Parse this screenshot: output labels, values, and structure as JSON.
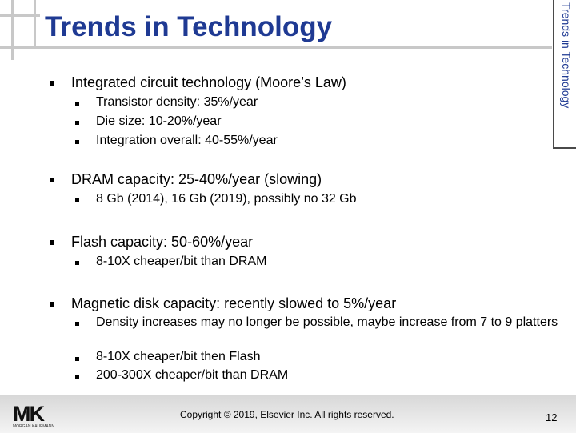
{
  "slide": {
    "title": "Trends in Technology",
    "side_label": "Trends in Technology",
    "bullets": [
      {
        "text": "Integrated circuit technology (Moore’s Law)",
        "sub": [
          "Transistor density: 35%/year",
          "Die size: 10-20%/year",
          "Integration overall: 40-55%/year"
        ]
      },
      {
        "text": "DRAM capacity: 25-40%/year (slowing)",
        "sub": [
          "8 Gb (2014), 16 Gb (2019), possibly no 32 Gb"
        ]
      },
      {
        "text": "Flash capacity: 50-60%/year",
        "sub": [
          "8-10X cheaper/bit than DRAM"
        ]
      },
      {
        "text": "Magnetic disk capacity: recently slowed to 5%/year",
        "sub": [
          "Density increases may no longer be possible, maybe increase from 7 to 9 platters",
          "8-10X cheaper/bit then Flash",
          "200-300X cheaper/bit than DRAM"
        ]
      }
    ],
    "footer": {
      "copyright": "Copyright © 2019, Elsevier Inc. All rights reserved.",
      "page_number": "12",
      "logo_text": "MK",
      "logo_subtext": "MORGAN KAUFMANN"
    },
    "colors": {
      "title": "#1f3a93",
      "footer_bg": "#d8d8d8"
    }
  }
}
